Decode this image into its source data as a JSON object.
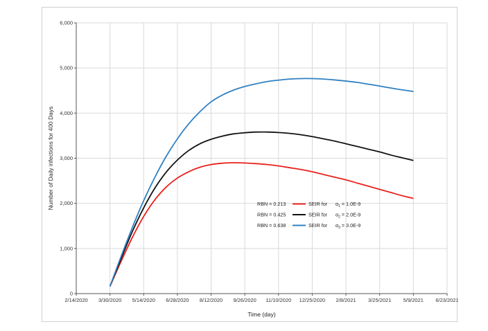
{
  "chart_data": {
    "type": "line",
    "title": "",
    "xlabel": "Time (day)",
    "ylabel": "Number of Daily infections for 400 Days",
    "x_ticks": [
      "2/14/2020",
      "3/30/2020",
      "5/14/2020",
      "6/28/2020",
      "8/12/2020",
      "9/26/2020",
      "11/10/2020",
      "12/25/2020",
      "2/8/2021",
      "3/25/2021",
      "5/9/2021",
      "6/23/2021"
    ],
    "y_ticks": [
      "0",
      "1,000",
      "2,000",
      "3,000",
      "4,000",
      "5,000",
      "6,000"
    ],
    "xlim": [
      "2/14/2020",
      "6/23/2021"
    ],
    "ylim": [
      0,
      6000
    ],
    "grid": true,
    "legend_position": "center-right",
    "series": [
      {
        "name": "SEIR for α1 = 1.0E-9",
        "rbn_label": "RBN = 0.213",
        "color": "#e8201c",
        "points": [
          [
            "3/30/2020",
            160
          ],
          [
            "4/14/2020",
            720
          ],
          [
            "4/29/2020",
            1250
          ],
          [
            "5/14/2020",
            1710
          ],
          [
            "5/29/2020",
            2080
          ],
          [
            "6/13/2020",
            2360
          ],
          [
            "6/28/2020",
            2560
          ],
          [
            "7/13/2020",
            2700
          ],
          [
            "7/28/2020",
            2800
          ],
          [
            "8/12/2020",
            2860
          ],
          [
            "8/27/2020",
            2890
          ],
          [
            "9/11/2020",
            2900
          ],
          [
            "9/26/2020",
            2895
          ],
          [
            "10/11/2020",
            2880
          ],
          [
            "10/26/2020",
            2860
          ],
          [
            "11/10/2020",
            2830
          ],
          [
            "11/25/2020",
            2790
          ],
          [
            "12/10/2020",
            2750
          ],
          [
            "12/25/2020",
            2700
          ],
          [
            "1/9/2021",
            2640
          ],
          [
            "1/24/2021",
            2580
          ],
          [
            "2/8/2021",
            2520
          ],
          [
            "2/23/2021",
            2450
          ],
          [
            "3/10/2021",
            2380
          ],
          [
            "3/25/2021",
            2310
          ],
          [
            "4/9/2021",
            2240
          ],
          [
            "4/24/2021",
            2170
          ],
          [
            "5/9/2021",
            2110
          ]
        ]
      },
      {
        "name": "SEIR for α2 = 2.0E-9",
        "rbn_label": "RBN = 0.425",
        "color": "#111111",
        "points": [
          [
            "3/30/2020",
            160
          ],
          [
            "4/14/2020",
            780
          ],
          [
            "4/29/2020",
            1380
          ],
          [
            "5/14/2020",
            1900
          ],
          [
            "5/29/2020",
            2340
          ],
          [
            "6/13/2020",
            2690
          ],
          [
            "6/28/2020",
            2960
          ],
          [
            "7/13/2020",
            3170
          ],
          [
            "7/28/2020",
            3320
          ],
          [
            "8/12/2020",
            3420
          ],
          [
            "8/27/2020",
            3490
          ],
          [
            "9/11/2020",
            3540
          ],
          [
            "9/26/2020",
            3565
          ],
          [
            "10/11/2020",
            3580
          ],
          [
            "10/26/2020",
            3580
          ],
          [
            "11/10/2020",
            3570
          ],
          [
            "11/25/2020",
            3550
          ],
          [
            "12/10/2020",
            3520
          ],
          [
            "12/25/2020",
            3480
          ],
          [
            "1/9/2021",
            3430
          ],
          [
            "1/24/2021",
            3380
          ],
          [
            "2/8/2021",
            3320
          ],
          [
            "2/23/2021",
            3260
          ],
          [
            "3/10/2021",
            3200
          ],
          [
            "3/25/2021",
            3140
          ],
          [
            "4/9/2021",
            3070
          ],
          [
            "4/24/2021",
            3010
          ],
          [
            "5/9/2021",
            2950
          ]
        ]
      },
      {
        "name": "SEIR for α3 = 3.0E-9",
        "rbn_label": "RBN = 0.638",
        "color": "#2f80c2",
        "points": [
          [
            "3/30/2020",
            160
          ],
          [
            "4/14/2020",
            830
          ],
          [
            "4/29/2020",
            1470
          ],
          [
            "5/14/2020",
            2060
          ],
          [
            "5/29/2020",
            2580
          ],
          [
            "6/13/2020",
            3040
          ],
          [
            "6/28/2020",
            3430
          ],
          [
            "7/13/2020",
            3760
          ],
          [
            "7/28/2020",
            4030
          ],
          [
            "8/12/2020",
            4250
          ],
          [
            "8/27/2020",
            4400
          ],
          [
            "9/11/2020",
            4510
          ],
          [
            "9/26/2020",
            4590
          ],
          [
            "10/11/2020",
            4650
          ],
          [
            "10/26/2020",
            4700
          ],
          [
            "11/10/2020",
            4730
          ],
          [
            "11/25/2020",
            4755
          ],
          [
            "12/10/2020",
            4765
          ],
          [
            "12/25/2020",
            4765
          ],
          [
            "1/9/2021",
            4755
          ],
          [
            "1/24/2021",
            4735
          ],
          [
            "2/8/2021",
            4710
          ],
          [
            "2/23/2021",
            4680
          ],
          [
            "3/10/2021",
            4640
          ],
          [
            "3/25/2021",
            4600
          ],
          [
            "4/9/2021",
            4555
          ],
          [
            "4/24/2021",
            4515
          ],
          [
            "5/9/2021",
            4480
          ]
        ]
      }
    ],
    "legend": [
      {
        "rbn": "RBN = 0.213",
        "label": "SEIR for",
        "alpha": "α",
        "sub": "1",
        "value": " = 1.0E-9",
        "color": "#e8201c"
      },
      {
        "rbn": "RBN = 0.425",
        "label": "SEIR for",
        "alpha": "α",
        "sub": "2",
        "value": " = 2.0E-9",
        "color": "#111111"
      },
      {
        "rbn": "RBN = 0.638",
        "label": "SEIR for",
        "alpha": "α",
        "sub": "3",
        "value": " = 3.0E-9",
        "color": "#2f80c2"
      }
    ]
  }
}
